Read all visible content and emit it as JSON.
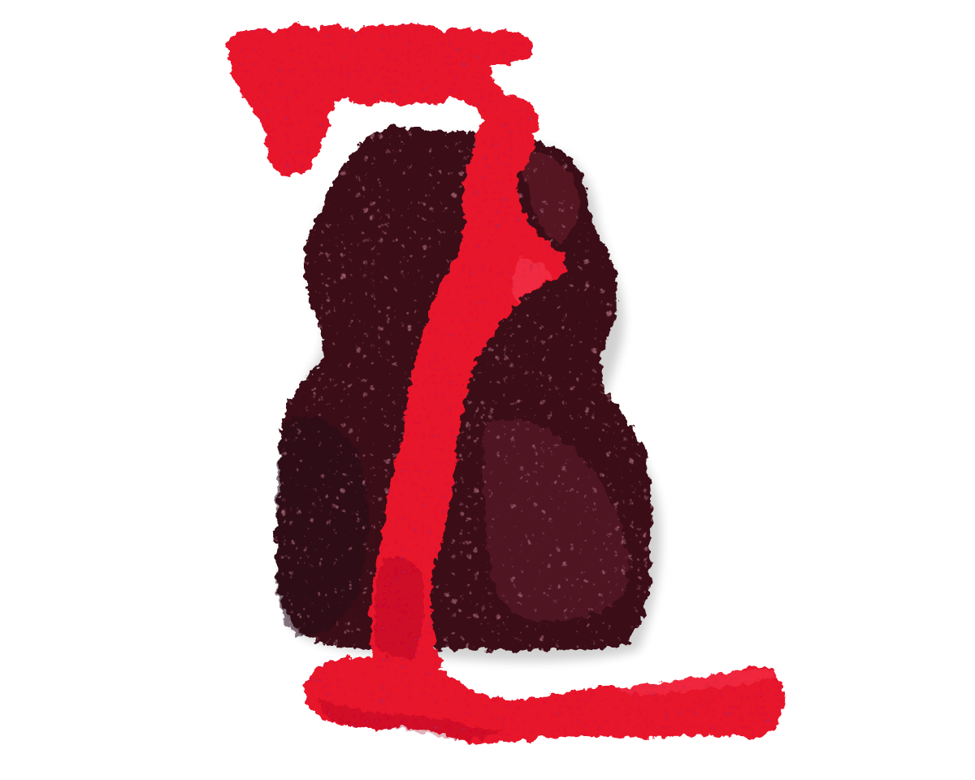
{
  "image": {
    "kind": "photograph",
    "subject": "textured-relief-sculpture",
    "background_color": "#ffffff",
    "colors": {
      "bright_red": "#e8142b",
      "bright_red_shadow": "#9e0a1c",
      "bright_red_highlight": "#ff5a6a",
      "dark_maroon": "#3a0a17",
      "dark_maroon_shadow": "#1d0509",
      "dark_maroon_highlight": "#7a2538"
    }
  }
}
